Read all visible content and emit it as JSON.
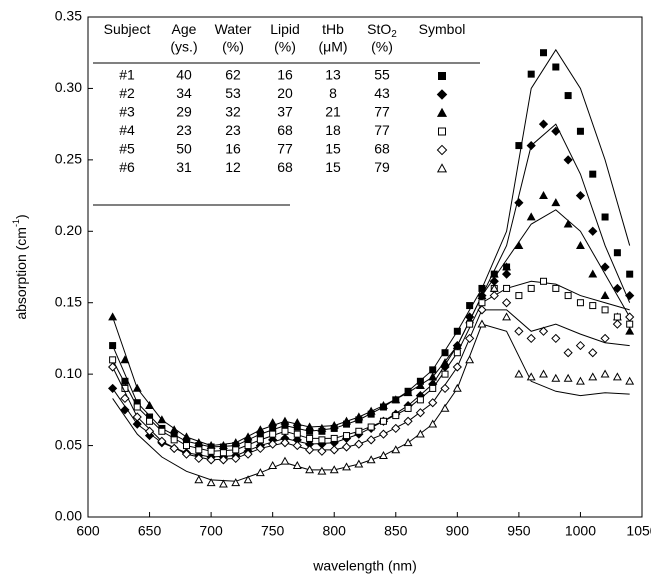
{
  "chart_data": {
    "type": "scatter",
    "x_label": "wavelength (nm)",
    "y_label": {
      "text": "absorption (cm",
      "sup": "-1",
      "end": ")"
    },
    "xlim": [
      600,
      1050
    ],
    "xticks": [
      600,
      650,
      700,
      750,
      800,
      850,
      900,
      950,
      1000,
      1050
    ],
    "ylim": [
      0,
      0.35
    ],
    "yticks": [
      {
        "value": 0,
        "label": "0.00"
      },
      0.05,
      {
        "value": 0.1,
        "label": "0.10"
      },
      0.15,
      {
        "value": 0.2,
        "label": "0.20"
      },
      0.25,
      {
        "value": 0.3,
        "label": "0.30"
      },
      0.35
    ],
    "x": [
      620,
      630,
      640,
      650,
      660,
      670,
      680,
      690,
      700,
      710,
      720,
      730,
      740,
      750,
      760,
      770,
      780,
      790,
      800,
      810,
      820,
      830,
      840,
      850,
      860,
      870,
      880,
      890,
      900,
      910,
      920,
      930,
      940,
      950,
      960,
      970,
      980,
      990,
      1000,
      1010,
      1020,
      1030,
      1040
    ],
    "fit_x": [
      620,
      640,
      660,
      680,
      700,
      720,
      740,
      760,
      780,
      800,
      820,
      840,
      860,
      880,
      900,
      920,
      940,
      960,
      980,
      1000,
      1020,
      1040
    ],
    "series": [
      {
        "name": "#1",
        "color": "#000000",
        "marker": "square",
        "filled": true,
        "values": [
          0.12,
          0.095,
          0.08,
          0.07,
          0.062,
          0.057,
          0.053,
          0.05,
          0.049,
          0.049,
          0.05,
          0.053,
          0.058,
          0.062,
          0.064,
          0.063,
          0.06,
          0.06,
          0.062,
          0.065,
          0.068,
          0.072,
          0.077,
          0.082,
          0.088,
          0.095,
          0.103,
          0.115,
          0.13,
          0.148,
          0.16,
          0.17,
          0.175,
          0.26,
          0.31,
          0.325,
          0.315,
          0.295,
          0.27,
          0.24,
          0.21,
          0.185,
          0.17
        ],
        "fit": [
          0.12,
          0.08,
          0.062,
          0.053,
          0.049,
          0.05,
          0.058,
          0.064,
          0.06,
          0.062,
          0.068,
          0.077,
          0.088,
          0.103,
          0.13,
          0.16,
          0.2,
          0.3,
          0.327,
          0.3,
          0.25,
          0.19
        ]
      },
      {
        "name": "#2",
        "color": "#000000",
        "marker": "diamond",
        "filled": true,
        "values": [
          0.09,
          0.075,
          0.065,
          0.057,
          0.052,
          0.048,
          0.045,
          0.043,
          0.042,
          0.042,
          0.043,
          0.046,
          0.05,
          0.054,
          0.055,
          0.054,
          0.051,
          0.051,
          0.052,
          0.055,
          0.058,
          0.062,
          0.067,
          0.072,
          0.078,
          0.085,
          0.093,
          0.105,
          0.12,
          0.14,
          0.155,
          0.165,
          0.17,
          0.22,
          0.26,
          0.275,
          0.27,
          0.25,
          0.225,
          0.2,
          0.175,
          0.16,
          0.155
        ],
        "fit": [
          0.09,
          0.065,
          0.052,
          0.045,
          0.042,
          0.043,
          0.05,
          0.055,
          0.051,
          0.052,
          0.058,
          0.067,
          0.078,
          0.093,
          0.12,
          0.155,
          0.19,
          0.26,
          0.275,
          0.24,
          0.19,
          0.15
        ]
      },
      {
        "name": "#3",
        "color": "#000000",
        "marker": "triangle",
        "filled": true,
        "values": [
          0.14,
          0.11,
          0.09,
          0.078,
          0.068,
          0.061,
          0.056,
          0.052,
          0.05,
          0.05,
          0.052,
          0.056,
          0.061,
          0.066,
          0.067,
          0.066,
          0.063,
          0.062,
          0.064,
          0.067,
          0.07,
          0.074,
          0.078,
          0.082,
          0.087,
          0.092,
          0.098,
          0.108,
          0.12,
          0.138,
          0.155,
          0.17,
          0.175,
          0.19,
          0.21,
          0.225,
          0.22,
          0.205,
          0.19,
          0.17,
          0.155,
          0.14,
          0.13
        ],
        "fit": [
          0.14,
          0.09,
          0.068,
          0.056,
          0.05,
          0.052,
          0.061,
          0.067,
          0.063,
          0.064,
          0.07,
          0.078,
          0.087,
          0.098,
          0.12,
          0.155,
          0.18,
          0.205,
          0.215,
          0.2,
          0.17,
          0.14
        ]
      },
      {
        "name": "#4",
        "color": "#000000",
        "marker": "square",
        "filled": false,
        "values": [
          0.11,
          0.09,
          0.077,
          0.067,
          0.06,
          0.054,
          0.05,
          0.047,
          0.046,
          0.045,
          0.047,
          0.05,
          0.054,
          0.058,
          0.06,
          0.058,
          0.055,
          0.054,
          0.055,
          0.057,
          0.06,
          0.063,
          0.067,
          0.071,
          0.076,
          0.082,
          0.09,
          0.1,
          0.115,
          0.135,
          0.15,
          0.16,
          0.16,
          0.155,
          0.16,
          0.165,
          0.16,
          0.155,
          0.15,
          0.148,
          0.145,
          0.14,
          0.135
        ],
        "fit": [
          0.11,
          0.077,
          0.06,
          0.05,
          0.046,
          0.047,
          0.054,
          0.06,
          0.055,
          0.055,
          0.06,
          0.067,
          0.076,
          0.09,
          0.115,
          0.15,
          0.16,
          0.165,
          0.163,
          0.155,
          0.15,
          0.145
        ]
      },
      {
        "name": "#5",
        "color": "#000000",
        "marker": "diamond",
        "filled": false,
        "values": [
          0.105,
          0.083,
          0.07,
          0.06,
          0.053,
          0.048,
          0.044,
          0.041,
          0.04,
          0.04,
          0.041,
          0.044,
          0.048,
          0.051,
          0.052,
          0.05,
          0.047,
          0.046,
          0.047,
          0.049,
          0.051,
          0.054,
          0.058,
          0.062,
          0.067,
          0.073,
          0.08,
          0.09,
          0.105,
          0.125,
          0.145,
          0.155,
          0.15,
          0.13,
          0.125,
          0.13,
          0.125,
          0.115,
          0.12,
          0.115,
          0.125,
          0.135,
          0.14
        ],
        "fit": [
          0.105,
          0.07,
          0.053,
          0.044,
          0.04,
          0.041,
          0.048,
          0.052,
          0.047,
          0.047,
          0.051,
          0.058,
          0.067,
          0.08,
          0.105,
          0.145,
          0.145,
          0.13,
          0.135,
          0.128,
          0.122,
          0.12
        ]
      },
      {
        "name": "#6",
        "color": "#000000",
        "marker": "triangle",
        "filled": false,
        "values": [
          null,
          null,
          null,
          null,
          null,
          null,
          null,
          0.026,
          0.024,
          0.023,
          0.024,
          0.026,
          0.031,
          0.036,
          0.039,
          0.036,
          0.033,
          0.032,
          0.033,
          0.035,
          0.037,
          0.04,
          0.043,
          0.047,
          0.052,
          0.058,
          0.065,
          0.076,
          0.09,
          0.11,
          0.135,
          0.16,
          0.14,
          0.1,
          0.098,
          0.1,
          0.097,
          0.097,
          0.095,
          0.098,
          0.1,
          0.098,
          0.095
        ],
        "fit": [
          0.083,
          0.058,
          0.042,
          0.032,
          0.026,
          0.025,
          0.031,
          0.038,
          0.033,
          0.033,
          0.037,
          0.043,
          0.052,
          0.065,
          0.09,
          0.135,
          0.13,
          0.095,
          0.088,
          0.085,
          0.087,
          0.086
        ]
      }
    ],
    "table": {
      "headers": [
        {
          "top": "Subject"
        },
        {
          "top": "Age",
          "bottom": "(ys.)"
        },
        {
          "top": "Water",
          "bottom": "(%)"
        },
        {
          "top": "Lipid",
          "bottom": "(%)"
        },
        {
          "top": "tHb",
          "bottom": "(μM)"
        },
        {
          "top": "StO",
          "sub": "2",
          "bottom": "(%)"
        },
        {
          "top": "Symbol"
        }
      ],
      "rows": [
        [
          40,
          62,
          16,
          13,
          55
        ],
        [
          34,
          53,
          20,
          8,
          43
        ],
        [
          29,
          32,
          37,
          21,
          77
        ],
        [
          23,
          23,
          68,
          18,
          77
        ],
        [
          50,
          16,
          77,
          15,
          68
        ],
        [
          31,
          12,
          68,
          15,
          79
        ]
      ]
    }
  }
}
